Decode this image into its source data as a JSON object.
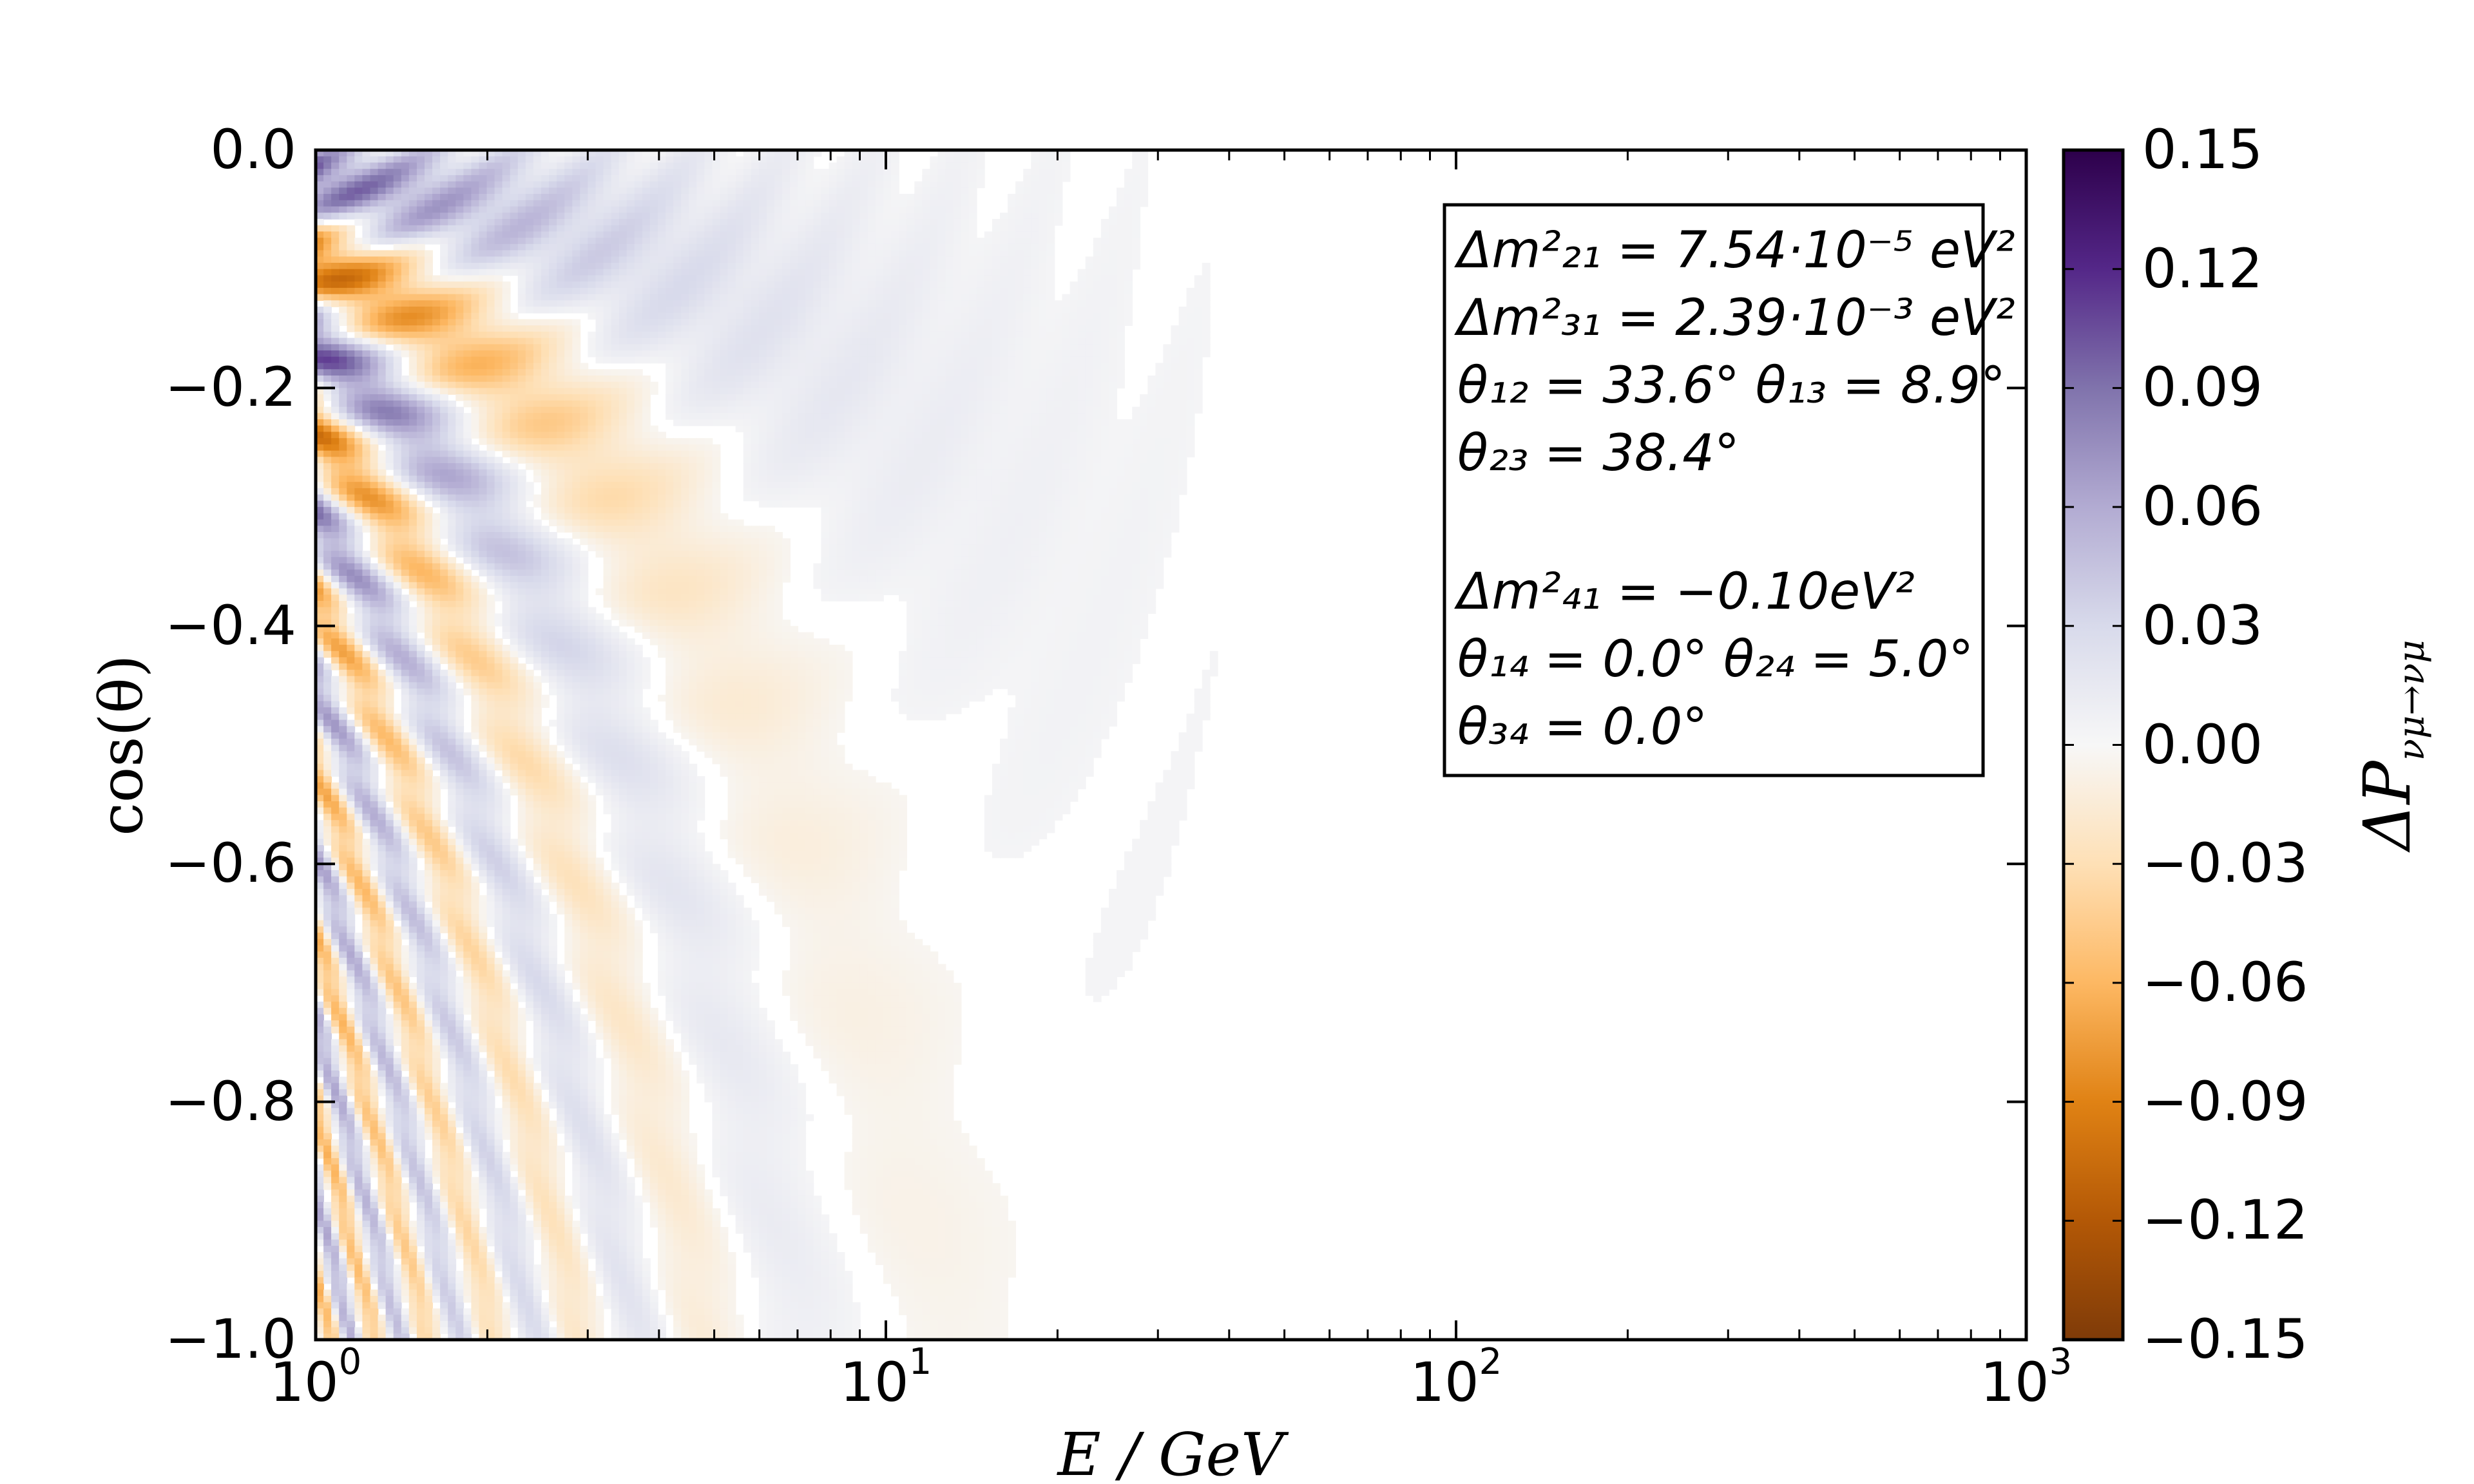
{
  "chart_data": {
    "type": "heatmap",
    "title": "",
    "xlabel": "E / GeV",
    "ylabel": "cos(θ)",
    "xscale": "log",
    "xlim": [
      1,
      1000
    ],
    "ylim": [
      -1.0,
      0.0
    ],
    "x_ticks": [
      {
        "base": "10",
        "exp": "0"
      },
      {
        "base": "10",
        "exp": "1"
      },
      {
        "base": "10",
        "exp": "2"
      },
      {
        "base": "10",
        "exp": "3"
      }
    ],
    "y_ticks": [
      "0.0",
      "−0.2",
      "−0.4",
      "−0.6",
      "−0.8",
      "−1.0"
    ],
    "y_tick_values": [
      0.0,
      -0.2,
      -0.4,
      -0.6,
      -0.8,
      -1.0
    ],
    "colorbar": {
      "label": "ΔP",
      "label_subscript": "νμ→νμ",
      "range": [
        -0.15,
        0.15
      ],
      "ticks": [
        "0.15",
        "0.12",
        "0.09",
        "0.06",
        "0.03",
        "0.00",
        "−0.03",
        "−0.06",
        "−0.09",
        "−0.12",
        "−0.15"
      ],
      "tick_values": [
        0.15,
        0.12,
        0.09,
        0.06,
        0.03,
        0.0,
        -0.03,
        -0.06,
        -0.09,
        -0.12,
        -0.15
      ],
      "colormap": [
        "#7f3b08",
        "#b35806",
        "#e08214",
        "#fdb863",
        "#fee0b6",
        "#f7f7f7",
        "#d8daeb",
        "#b2abd2",
        "#8073ac",
        "#542788",
        "#2d004b"
      ]
    },
    "annotation": {
      "lines": [
        "Δm²₂₁ = 7.54·10⁻⁵ eV²",
        "Δm²₃₁ = 2.39·10⁻³ eV²",
        "θ₁₂ = 33.6°   θ₁₃ = 8.9°",
        "θ₂₃ = 38.4°",
        "",
        "Δm²₄₁ = −0.10eV²",
        "θ₁₄ = 0.0°   θ₂₄ = 5.0°",
        "θ₃₄ = 0.0°"
      ]
    }
  }
}
